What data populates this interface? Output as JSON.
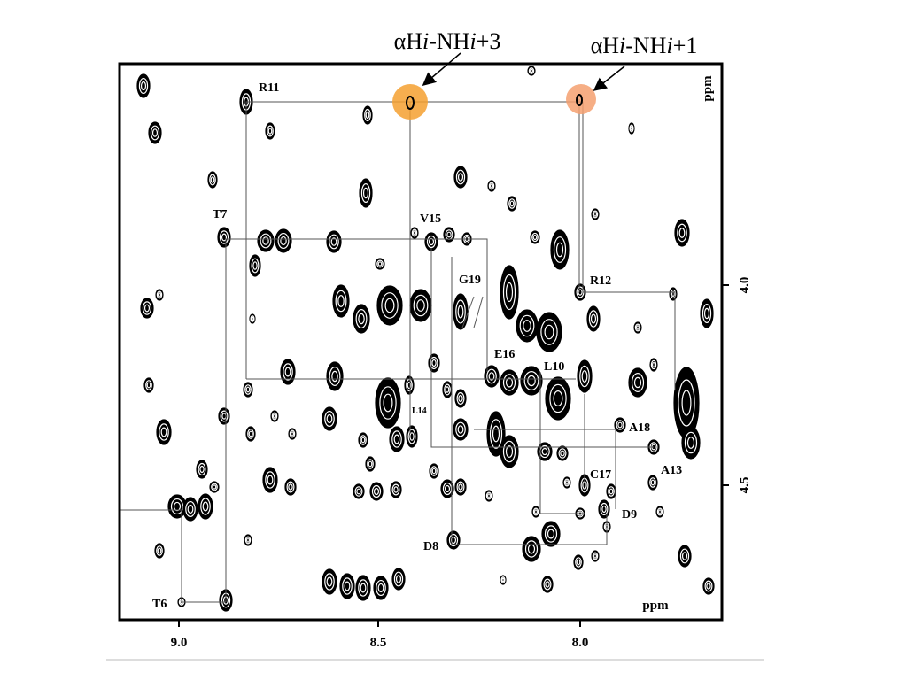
{
  "annotations": {
    "left": [
      "αH",
      "i",
      "-NH",
      "i",
      "+3"
    ],
    "right": [
      "αH",
      "i",
      "-NH",
      "i",
      "+1"
    ]
  },
  "axes": {
    "x_ticks": [
      "9.0",
      "8.5",
      "8.0"
    ],
    "y_ticks": [
      "4.0",
      "4.5"
    ],
    "x_unit": "ppm",
    "y_unit": "ppm"
  },
  "residues": [
    "R11",
    "T7",
    "V15",
    "G19",
    "R12",
    "E16",
    "L10",
    "L14",
    "A18",
    "A13",
    "C17",
    "D9",
    "D8",
    "T6"
  ]
}
